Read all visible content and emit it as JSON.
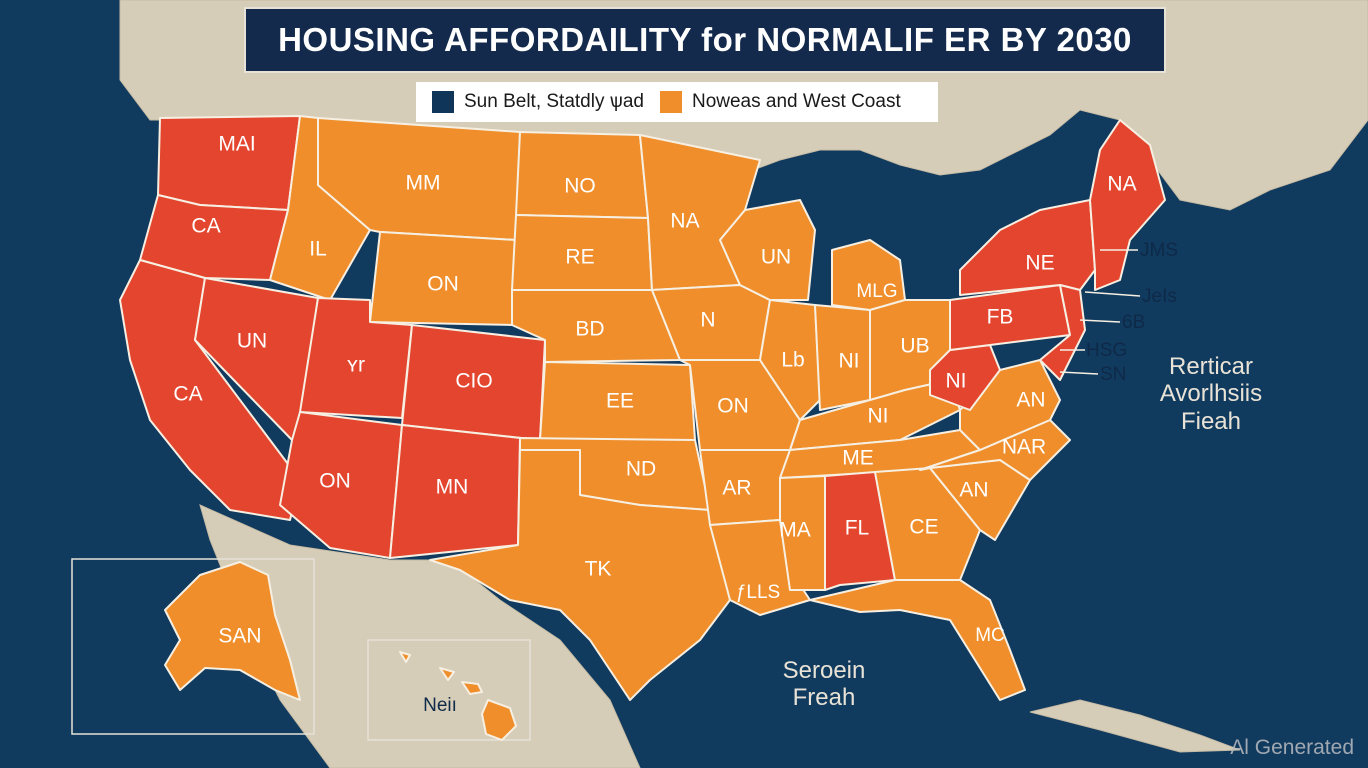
{
  "title": "HOUSING AFFORDAILITY for NORMALIF ER BY 2030",
  "legend": {
    "items": [
      {
        "label": "Sun Belt, Statdly ѱad",
        "color": "#0f3558"
      },
      {
        "label": "Noweas and West Coast",
        "color": "#ef8e2a"
      }
    ]
  },
  "colors": {
    "ocean": "#113a5f",
    "land": "#d6cdb8",
    "red": "#e4452e",
    "orange": "#ef8e2a"
  },
  "states": {
    "wa": "MAI",
    "or": "CA",
    "ca_north": "CA",
    "nv": "UN",
    "id": "IL",
    "mt": "MM",
    "wy": "ON",
    "ut": "ʏr",
    "co": "CIO",
    "az": "ON",
    "nm": "MN",
    "nd": "NO",
    "sd": "RE",
    "ne": "BD",
    "ks": "EE",
    "ok": "ND",
    "tx": "TK",
    "mn": "NA",
    "ia": "N",
    "mo": "ON",
    "ar": "AR",
    "la": "ƒLLS",
    "wi": "UN",
    "il": "Lb",
    "in": "NI",
    "mi": "MLG",
    "oh": "UB",
    "ky": "NI",
    "tn": "ME",
    "ms": "MA",
    "al": "FL",
    "ga": "CE",
    "fl": "MC",
    "sc": "AN",
    "nc": "NAR",
    "va": "AN",
    "wv": "NI",
    "pa": "FB",
    "ny": "NE",
    "me": "NA",
    "ak": "SAN",
    "hi": "Neiı"
  },
  "callouts": {
    "c1": "JMS",
    "c2": "JeIs",
    "c3": "6B",
    "c4": "HSG",
    "c5": "SN"
  },
  "ocean_labels": {
    "atlantic": [
      "Rerticar",
      "Avorlhsiis",
      "Fieah"
    ],
    "gulf": [
      "Seroein",
      "Freah"
    ]
  },
  "watermark": "Al Generated"
}
